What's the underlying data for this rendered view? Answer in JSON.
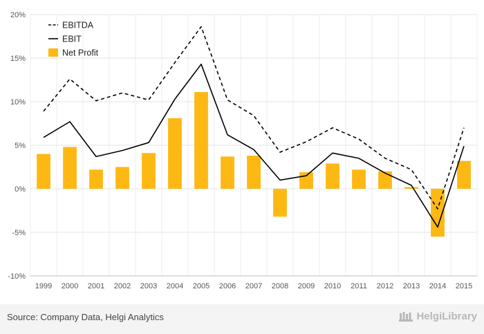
{
  "chart_data": {
    "type": "bar+line",
    "categories": [
      "1999",
      "2000",
      "2001",
      "2002",
      "2003",
      "2004",
      "2005",
      "2006",
      "2007",
      "2008",
      "2009",
      "2010",
      "2011",
      "2012",
      "2013",
      "2014",
      "2015"
    ],
    "ylim": [
      -10,
      20
    ],
    "y_ticks": [
      {
        "value": 20,
        "label": "20%"
      },
      {
        "value": 15,
        "label": "15%"
      },
      {
        "value": 10,
        "label": "10%"
      },
      {
        "value": 5,
        "label": "5%"
      },
      {
        "value": 0,
        "label": "0%"
      },
      {
        "value": -5,
        "label": "-5%"
      },
      {
        "value": -10,
        "label": "-10%"
      }
    ],
    "grid": true,
    "legend_position": "top-left",
    "series": [
      {
        "name": "EBITDA",
        "kind": "line",
        "style": "dashed",
        "color": "#000000",
        "values": [
          8.9,
          12.6,
          10.1,
          11.0,
          10.2,
          14.5,
          18.6,
          10.2,
          8.4,
          4.2,
          5.4,
          7.0,
          5.7,
          3.5,
          2.2,
          -2.3,
          7.0
        ]
      },
      {
        "name": "EBIT",
        "kind": "line",
        "style": "solid",
        "color": "#000000",
        "values": [
          5.9,
          7.7,
          3.7,
          4.4,
          5.3,
          10.3,
          14.3,
          6.2,
          4.5,
          1.0,
          1.5,
          4.1,
          3.5,
          1.8,
          0.4,
          -4.4,
          4.9
        ]
      },
      {
        "name": "Net Profit",
        "kind": "bar",
        "color": "#FDB813",
        "values": [
          4.0,
          4.8,
          2.2,
          2.5,
          4.1,
          8.1,
          11.1,
          3.7,
          3.8,
          -3.2,
          1.9,
          2.9,
          2.2,
          2.0,
          0.2,
          -5.5,
          3.2
        ]
      }
    ]
  },
  "footer": {
    "source": "Source: Company Data, Helgi Analytics",
    "logo": "HelgiLibrary",
    "logo_icon": "library-icon"
  }
}
